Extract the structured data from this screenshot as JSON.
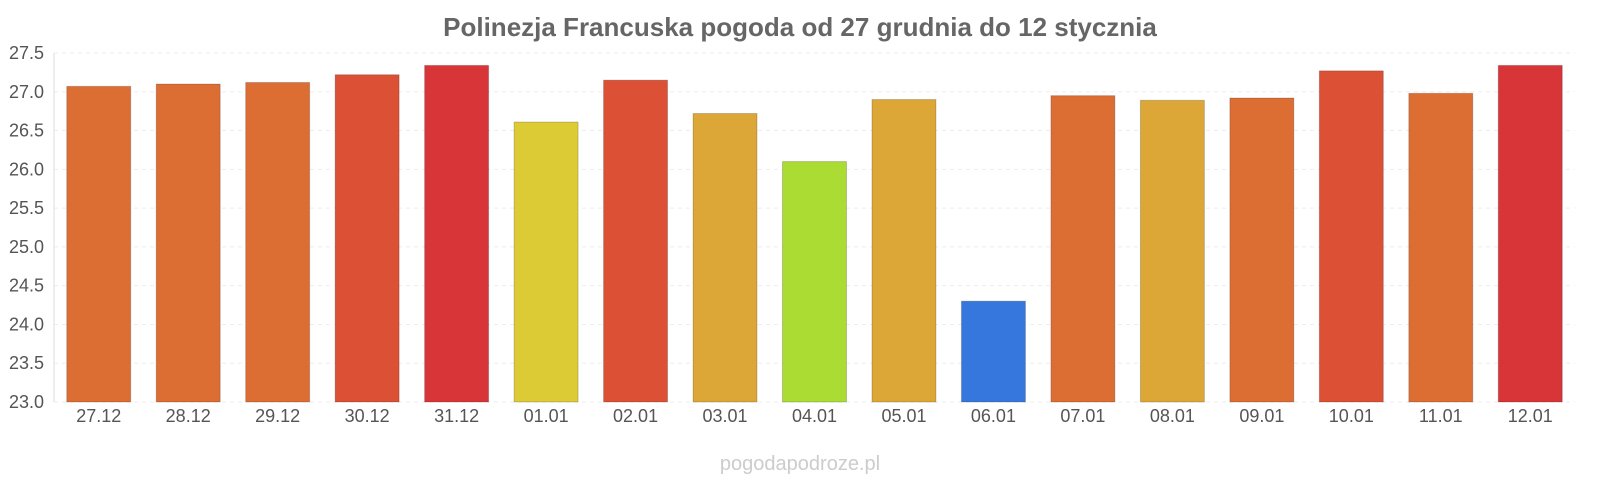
{
  "chart_data": {
    "type": "bar",
    "title": "Polinezja Francuska pogoda od 27 grudnia do 12 stycznia",
    "xlabel": "",
    "ylabel": "",
    "ylim": [
      23.0,
      27.5
    ],
    "y_ticks": [
      "23.0",
      "23.5",
      "24.0",
      "24.5",
      "25.0",
      "25.5",
      "26.0",
      "26.5",
      "27.0",
      "27.5"
    ],
    "grid": true,
    "categories": [
      "27.12",
      "28.12",
      "29.12",
      "30.12",
      "31.12",
      "01.01",
      "02.01",
      "03.01",
      "04.01",
      "05.01",
      "06.01",
      "07.01",
      "08.01",
      "09.01",
      "10.01",
      "11.01",
      "12.01"
    ],
    "values": [
      27.07,
      27.1,
      27.12,
      27.22,
      27.34,
      26.61,
      27.15,
      26.72,
      26.1,
      26.9,
      24.3,
      26.95,
      26.89,
      26.92,
      27.27,
      26.98,
      27.34
    ],
    "colors": [
      "#dd6e33",
      "#dd6e33",
      "#dd6e33",
      "#dc5136",
      "#d83538",
      "#dccb34",
      "#dc5136",
      "#dca736",
      "#aadc34",
      "#dca736",
      "#3577dc",
      "#dd6e33",
      "#dca736",
      "#dd6e33",
      "#dc5136",
      "#dd6e33",
      "#d83538"
    ]
  },
  "watermark": "pogodapodroze.pl"
}
